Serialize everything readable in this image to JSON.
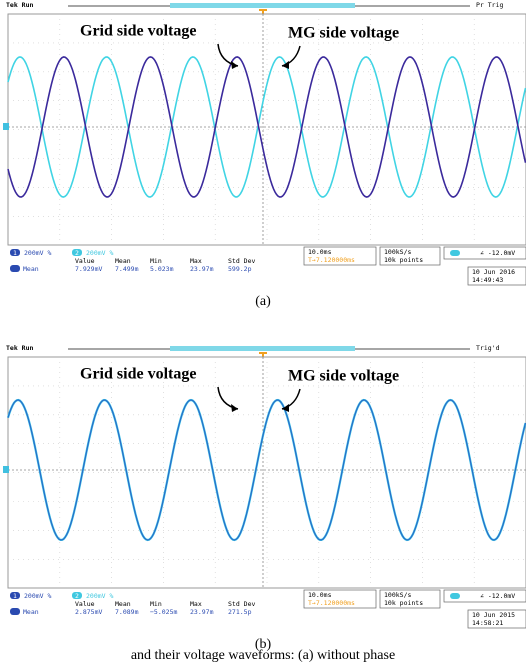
{
  "panels": [
    {
      "status": "Tek Run",
      "trigger_state": "Pr Trig",
      "annotations": [
        "Grid side voltage",
        "MG side voltage"
      ],
      "ch1_label": "1",
      "ch1_scale": "200mV %",
      "ch2_label": "2",
      "ch2_scale": "200mV %",
      "measure_headers": [
        "Value",
        "Mean",
        "Min",
        "Max",
        "Std Dev"
      ],
      "measure_label": "Mean",
      "measure_values": [
        "7.929mV",
        "7.499m",
        "5.023m",
        "23.97m",
        "599.2p"
      ],
      "timebase": "10.0ms",
      "trigger_position": "T→7.120000ms",
      "sample_rate": "100kS/s",
      "record_length": "10k points",
      "trigger_level": "∠ -12.0mV",
      "date": "10 Jun 2016",
      "time": "14:49:43",
      "caption": "(a)"
    },
    {
      "status": "Tek Run",
      "trigger_state": "Trig'd",
      "annotations": [
        "Grid side voltage",
        "MG side voltage"
      ],
      "ch1_label": "1",
      "ch1_scale": "200mV %",
      "ch2_label": "2",
      "ch2_scale": "200mV %",
      "measure_headers": [
        "Value",
        "Mean",
        "Min",
        "Max",
        "Std Dev"
      ],
      "measure_label": "Mean",
      "measure_values": [
        "2.875mV",
        "7.089m",
        "−5.025m",
        "23.97m",
        "271.5p"
      ],
      "timebase": "10.0ms",
      "trigger_position": "T→7.120000ms",
      "sample_rate": "100kS/s",
      "record_length": "10k points",
      "trigger_level": "∠ -12.0mV",
      "date": "10 Jun 2015",
      "time": "14:58:21",
      "caption": "(b)"
    }
  ],
  "figure_caption": "and their voltage waveforms: (a) without phase"
}
